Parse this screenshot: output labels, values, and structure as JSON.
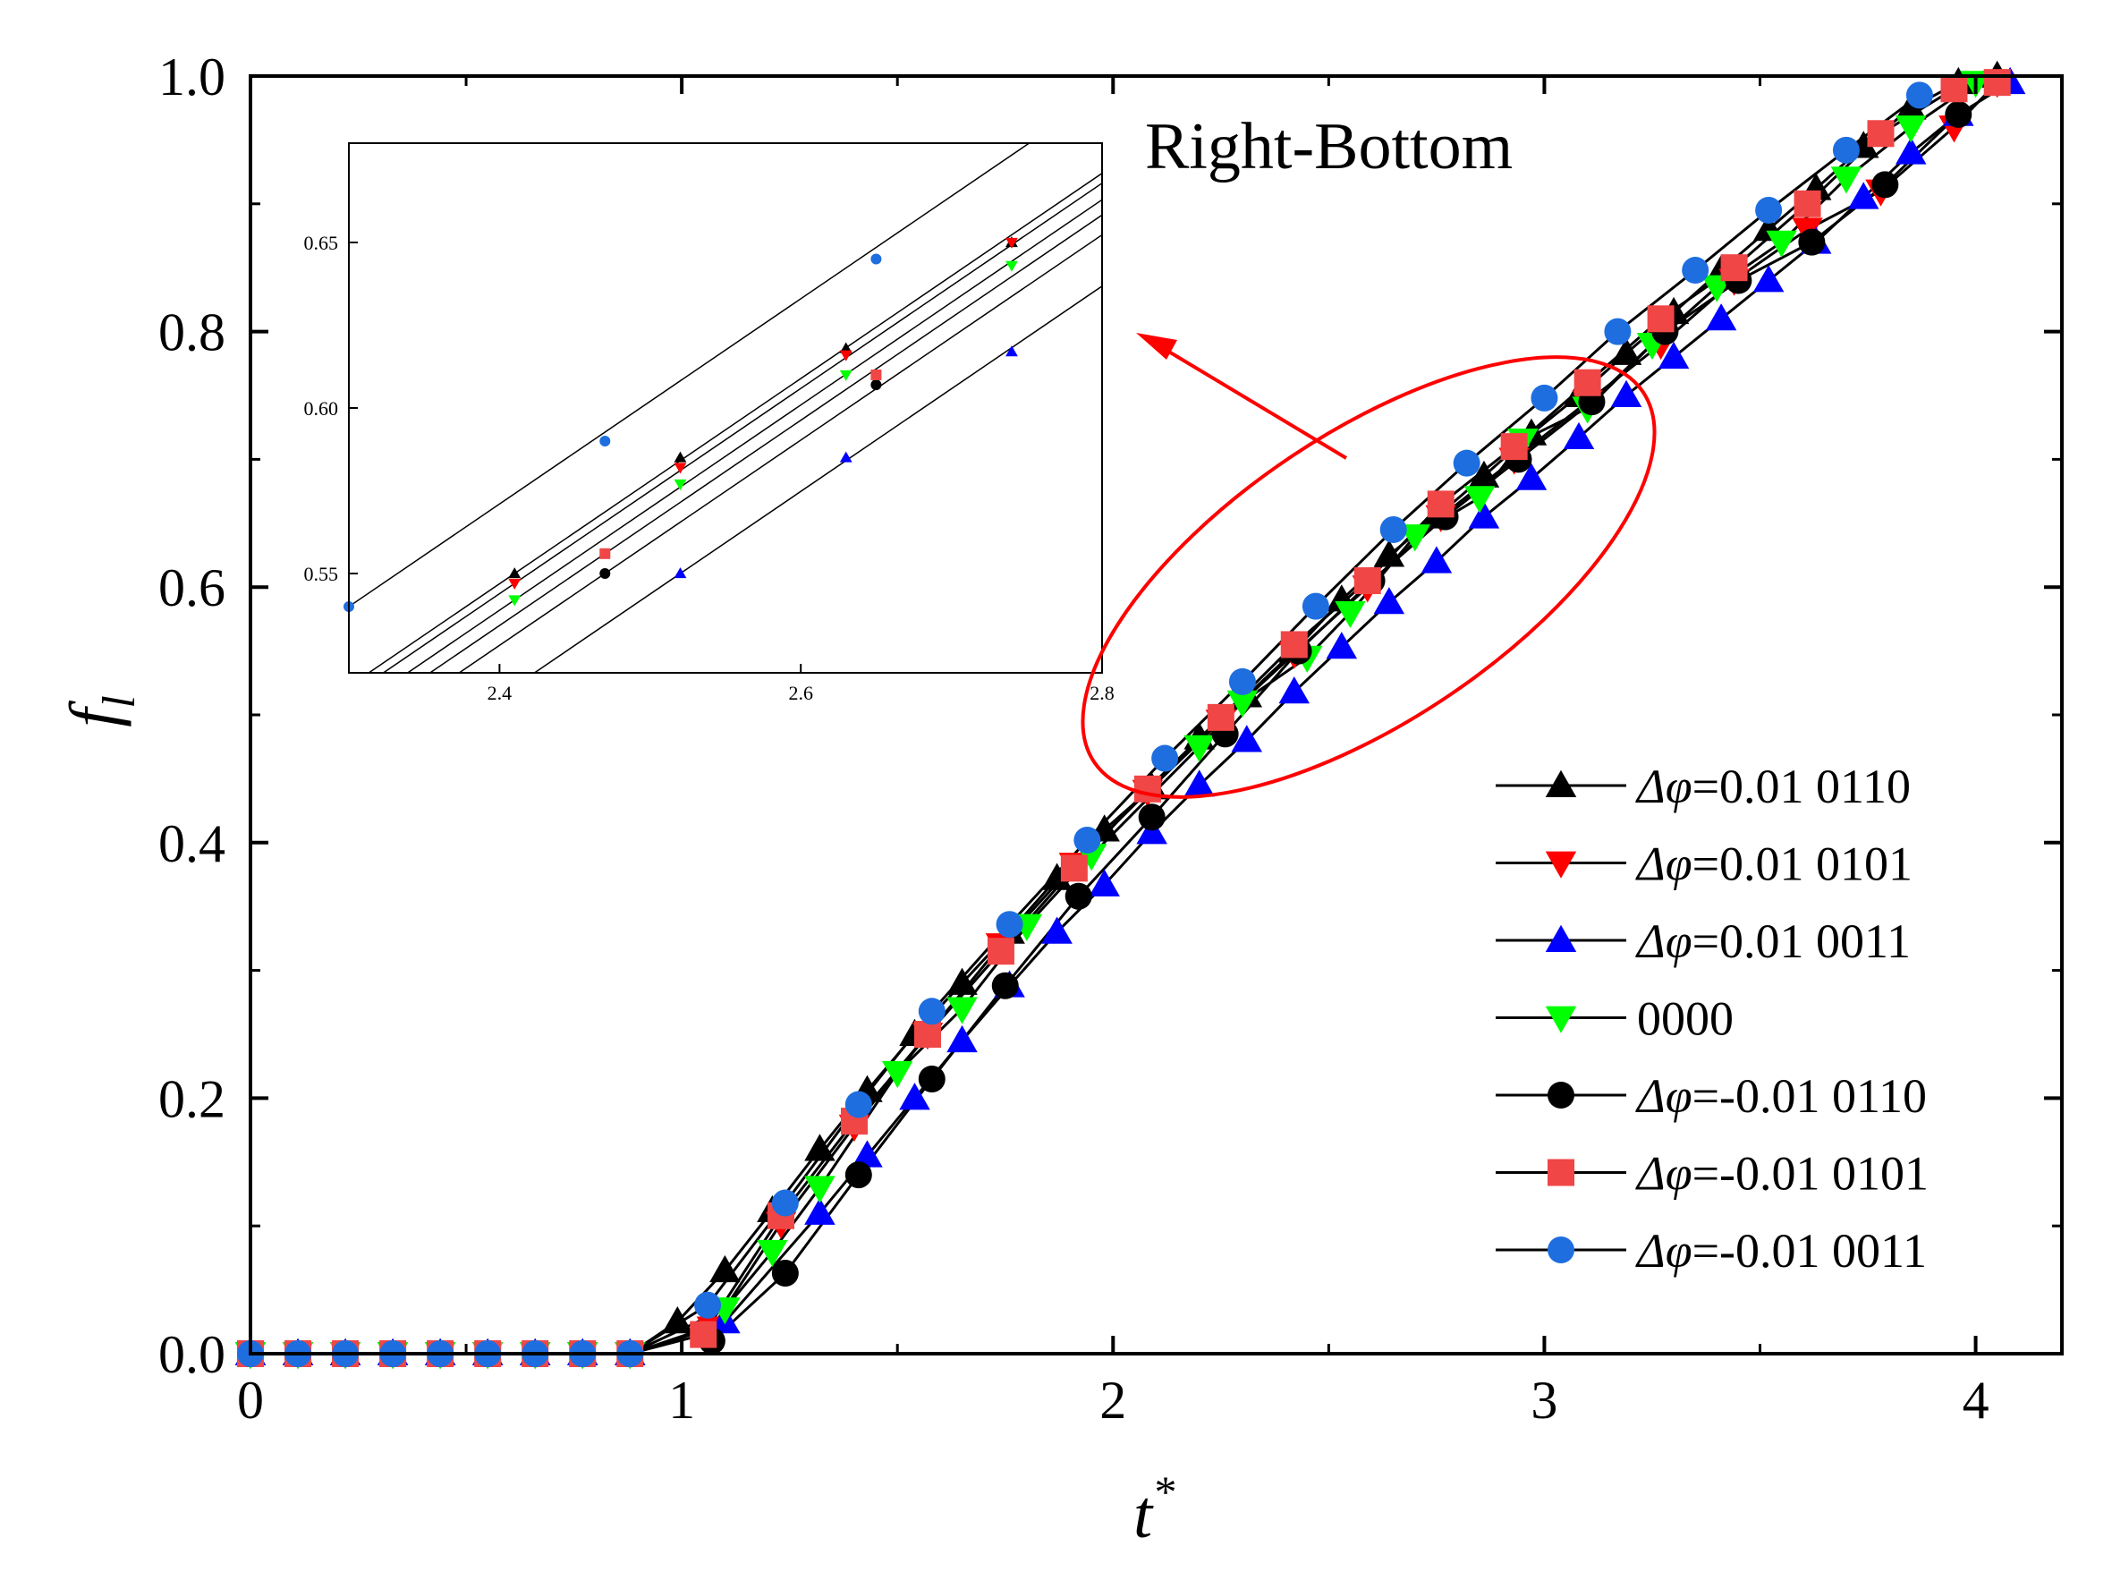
{
  "chart_data": {
    "type": "line",
    "xlabel": "t",
    "xlabel_sup": "*",
    "ylabel": "f",
    "ylabel_sub": "l",
    "xlim": [
      0,
      4.2
    ],
    "ylim": [
      0,
      1.0
    ],
    "x_ticks": [
      0,
      1,
      2,
      3,
      4
    ],
    "x_tick_labels": [
      "0",
      "1",
      "2",
      "3",
      "4"
    ],
    "y_ticks": [
      0,
      0.2,
      0.4,
      0.6,
      0.8,
      1.0
    ],
    "y_tick_labels": [
      "0.0",
      "0.2",
      "0.4",
      "0.6",
      "0.8",
      "1.0"
    ],
    "grid": false,
    "legend_position": "bottom-right",
    "annotation": "Right-Bottom",
    "series": [
      {
        "name": "Δφ=0.01  0110",
        "legend_prefix": "Δφ",
        "legend_value": "=0.01  0110",
        "marker": "triangle-up",
        "color": "#000000",
        "x": [
          0.0,
          0.11,
          0.22,
          0.33,
          0.44,
          0.55,
          0.66,
          0.77,
          0.88,
          0.99,
          1.1,
          1.21,
          1.32,
          1.43,
          1.54,
          1.65,
          1.76,
          1.87,
          1.98,
          2.09,
          2.2,
          2.31,
          2.42,
          2.53,
          2.64,
          2.75,
          2.86,
          2.97,
          3.08,
          3.19,
          3.3,
          3.41,
          3.52,
          3.63,
          3.74,
          3.85,
          3.96,
          4.05
        ],
        "y": [
          0.0,
          0.0,
          0.0,
          0.0,
          0.0,
          0.0,
          0.0,
          0.0,
          0.0,
          0.025,
          0.065,
          0.112,
          0.16,
          0.206,
          0.25,
          0.29,
          0.33,
          0.372,
          0.41,
          0.443,
          0.482,
          0.515,
          0.55,
          0.59,
          0.625,
          0.655,
          0.687,
          0.72,
          0.75,
          0.783,
          0.815,
          0.848,
          0.88,
          0.912,
          0.945,
          0.975,
          0.995,
          1.0
        ]
      },
      {
        "name": "Δφ=0.01  0101",
        "legend_prefix": "Δφ",
        "legend_value": "=0.01  0101",
        "marker": "triangle-down",
        "color": "#ff0000",
        "x": [
          0.0,
          0.11,
          0.22,
          0.33,
          0.44,
          0.55,
          0.66,
          0.77,
          0.88,
          1.07,
          1.23,
          1.4,
          1.57,
          1.74,
          1.91,
          2.08,
          2.25,
          2.42,
          2.59,
          2.76,
          2.93,
          3.1,
          3.27,
          3.44,
          3.61,
          3.78,
          3.95,
          4.05
        ],
        "y": [
          0.0,
          0.0,
          0.0,
          0.0,
          0.0,
          0.0,
          0.0,
          0.0,
          0.0,
          0.02,
          0.102,
          0.178,
          0.25,
          0.32,
          0.383,
          0.44,
          0.495,
          0.548,
          0.6,
          0.655,
          0.7,
          0.745,
          0.79,
          0.84,
          0.88,
          0.91,
          0.96,
          0.995
        ]
      },
      {
        "name": "Δφ=0.01  0011",
        "legend_prefix": "Δφ",
        "legend_value": "=0.01  0011",
        "marker": "triangle-up",
        "color": "#0000ff",
        "x": [
          0.0,
          0.11,
          0.22,
          0.33,
          0.44,
          0.55,
          0.66,
          0.77,
          0.88,
          1.1,
          1.32,
          1.43,
          1.54,
          1.65,
          1.76,
          1.87,
          1.98,
          2.09,
          2.2,
          2.31,
          2.42,
          2.53,
          2.64,
          2.75,
          2.86,
          2.97,
          3.08,
          3.19,
          3.3,
          3.41,
          3.52,
          3.63,
          3.74,
          3.85,
          3.96,
          4.08
        ],
        "y": [
          0.0,
          0.0,
          0.0,
          0.0,
          0.0,
          0.0,
          0.0,
          0.0,
          0.0,
          0.025,
          0.11,
          0.155,
          0.2,
          0.245,
          0.288,
          0.33,
          0.367,
          0.408,
          0.445,
          0.48,
          0.518,
          0.553,
          0.588,
          0.62,
          0.655,
          0.685,
          0.717,
          0.75,
          0.78,
          0.81,
          0.84,
          0.87,
          0.905,
          0.94,
          0.97,
          0.995
        ]
      },
      {
        "name": "0000",
        "legend_prefix": "",
        "legend_value": "0000",
        "marker": "triangle-down",
        "color": "#00ff00",
        "x": [
          0.0,
          0.11,
          0.22,
          0.33,
          0.44,
          0.55,
          0.66,
          0.77,
          0.88,
          1.1,
          1.21,
          1.32,
          1.5,
          1.65,
          1.8,
          1.95,
          2.2,
          2.3,
          2.45,
          2.55,
          2.7,
          2.85,
          2.95,
          3.1,
          3.25,
          3.4,
          3.55,
          3.7,
          3.85,
          4.0
        ],
        "y": [
          0.0,
          0.0,
          0.0,
          0.0,
          0.0,
          0.0,
          0.0,
          0.0,
          0.0,
          0.035,
          0.08,
          0.13,
          0.22,
          0.27,
          0.335,
          0.39,
          0.475,
          0.51,
          0.545,
          0.58,
          0.64,
          0.67,
          0.715,
          0.74,
          0.79,
          0.835,
          0.87,
          0.92,
          0.96,
          0.995
        ]
      },
      {
        "name": "Δφ=-0.01 0110",
        "legend_prefix": "Δφ",
        "legend_value": "=-0.01 0110",
        "marker": "circle",
        "color": "#000000",
        "x": [
          1.07,
          1.24,
          1.41,
          1.58,
          1.75,
          1.92,
          2.09,
          2.26,
          2.43,
          2.6,
          2.77,
          2.94,
          3.11,
          3.28,
          3.45,
          3.62,
          3.79,
          3.96
        ],
        "y": [
          0.01,
          0.063,
          0.14,
          0.215,
          0.288,
          0.358,
          0.42,
          0.485,
          0.55,
          0.605,
          0.655,
          0.7,
          0.745,
          0.8,
          0.84,
          0.87,
          0.915,
          0.97
        ]
      },
      {
        "name": "Δφ=-0.01 0101",
        "legend_prefix": "Δφ",
        "legend_value": "=-0.01 0101",
        "marker": "square",
        "color": "#f04646",
        "x": [
          0.0,
          0.11,
          0.22,
          0.33,
          0.44,
          0.55,
          0.66,
          0.77,
          0.88,
          1.05,
          1.23,
          1.4,
          1.57,
          1.74,
          1.91,
          2.08,
          2.25,
          2.42,
          2.59,
          2.76,
          2.93,
          3.1,
          3.27,
          3.44,
          3.61,
          3.78,
          3.95,
          4.05
        ],
        "y": [
          0.0,
          0.0,
          0.0,
          0.0,
          0.0,
          0.0,
          0.0,
          0.0,
          0.0,
          0.015,
          0.108,
          0.182,
          0.25,
          0.315,
          0.38,
          0.442,
          0.498,
          0.555,
          0.605,
          0.665,
          0.71,
          0.76,
          0.81,
          0.85,
          0.9,
          0.955,
          0.99,
          0.995
        ]
      },
      {
        "name": "Δφ=-0.01 0011",
        "legend_prefix": "Δφ",
        "legend_value": "=-0.01 0011",
        "marker": "circle",
        "color": "#1e6ee0",
        "x": [
          0.0,
          0.11,
          0.22,
          0.33,
          0.44,
          0.55,
          0.66,
          0.77,
          0.88,
          1.06,
          1.24,
          1.41,
          1.58,
          1.76,
          1.94,
          2.12,
          2.3,
          2.47,
          2.65,
          2.82,
          3.0,
          3.17,
          3.35,
          3.52,
          3.7,
          3.87
        ],
        "y": [
          0.0,
          0.0,
          0.0,
          0.0,
          0.0,
          0.0,
          0.0,
          0.0,
          0.0,
          0.038,
          0.118,
          0.195,
          0.268,
          0.336,
          0.402,
          0.466,
          0.526,
          0.585,
          0.645,
          0.697,
          0.748,
          0.8,
          0.848,
          0.895,
          0.942,
          0.985
        ]
      }
    ],
    "inset": {
      "xlim": [
        2.3,
        2.8
      ],
      "ylim": [
        0.52,
        0.68
      ],
      "x_ticks": [
        2.4,
        2.6,
        2.8
      ],
      "x_tick_labels": [
        "2.4",
        "2.6",
        "2.8"
      ],
      "y_ticks": [
        0.55,
        0.6,
        0.65
      ],
      "y_tick_labels": [
        "0.55",
        "0.60",
        "0.65"
      ],
      "points": [
        {
          "series": 0,
          "x": [
            2.41,
            2.52,
            2.63,
            2.74
          ],
          "y": [
            0.55,
            0.585,
            0.618,
            0.65
          ]
        },
        {
          "series": 1,
          "x": [
            2.41,
            2.52,
            2.63,
            2.74
          ],
          "y": [
            0.547,
            0.582,
            0.616,
            0.65
          ]
        },
        {
          "series": 2,
          "x": [
            2.52,
            2.63,
            2.74
          ],
          "y": [
            0.55,
            0.585,
            0.617
          ]
        },
        {
          "series": 3,
          "x": [
            2.41,
            2.52,
            2.63,
            2.74
          ],
          "y": [
            0.542,
            0.577,
            0.61,
            0.643
          ]
        },
        {
          "series": 4,
          "x": [
            2.47,
            2.65
          ],
          "y": [
            0.55,
            0.607
          ]
        },
        {
          "series": 5,
          "x": [
            2.47,
            2.65
          ],
          "y": [
            0.556,
            0.61
          ]
        },
        {
          "series": 6,
          "x": [
            2.3,
            2.47,
            2.65
          ],
          "y": [
            0.54,
            0.59,
            0.645
          ]
        }
      ]
    }
  }
}
